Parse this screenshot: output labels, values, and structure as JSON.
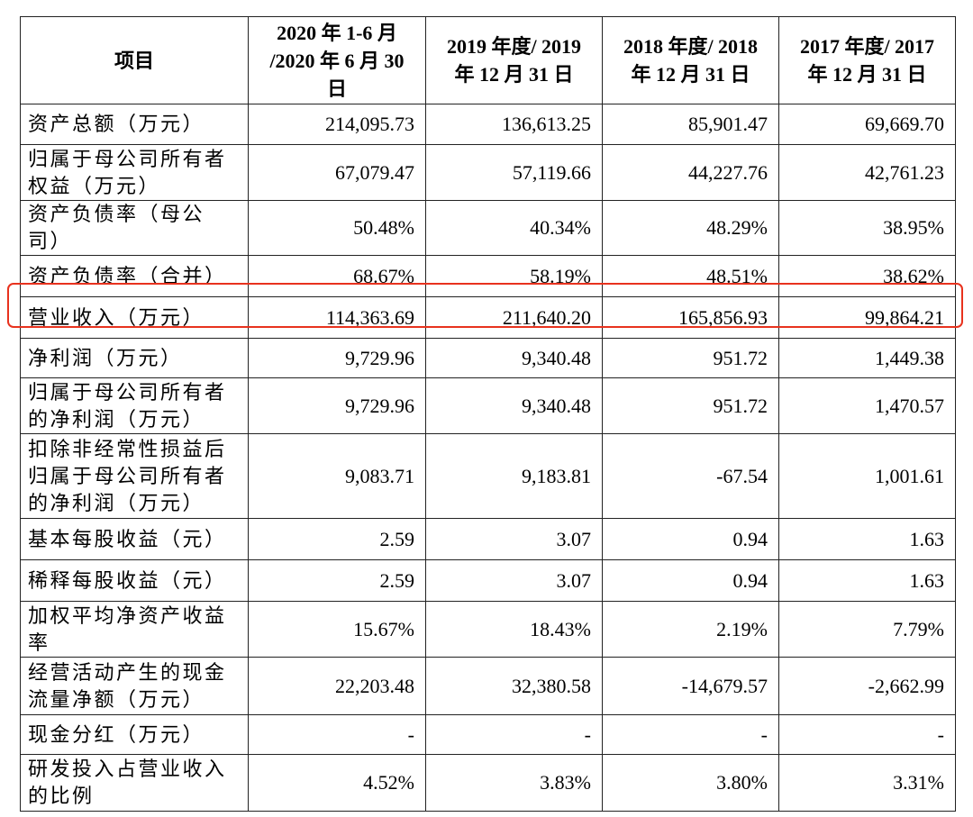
{
  "table": {
    "header": [
      "项目",
      "2020 年 1-6 月 /2020 年 6 月 30 日",
      "2019 年度/ 2019 年 12 月 31 日",
      "2018 年度/ 2018 年 12 月 31 日",
      "2017 年度/ 2017 年 12 月 31 日"
    ],
    "rows": [
      [
        "资产总额（万元）",
        "214,095.73",
        "136,613.25",
        "85,901.47",
        "69,669.70"
      ],
      [
        "归属于母公司所有者权益（万元）",
        "67,079.47",
        "57,119.66",
        "44,227.76",
        "42,761.23"
      ],
      [
        "资产负债率（母公司）",
        "50.48%",
        "40.34%",
        "48.29%",
        "38.95%"
      ],
      [
        "资产负债率（合并）",
        "68.67%",
        "58.19%",
        "48.51%",
        "38.62%"
      ],
      [
        "营业收入（万元）",
        "114,363.69",
        "211,640.20",
        "165,856.93",
        "99,864.21"
      ],
      [
        "净利润（万元）",
        "9,729.96",
        "9,340.48",
        "951.72",
        "1,449.38"
      ],
      [
        "归属于母公司所有者的净利润（万元）",
        "9,729.96",
        "9,340.48",
        "951.72",
        "1,470.57"
      ],
      [
        "扣除非经常性损益后归属于母公司所有者的净利润（万元）",
        "9,083.71",
        "9,183.81",
        "-67.54",
        "1,001.61"
      ],
      [
        "基本每股收益（元）",
        "2.59",
        "3.07",
        "0.94",
        "1.63"
      ],
      [
        "稀释每股收益（元）",
        "2.59",
        "3.07",
        "0.94",
        "1.63"
      ],
      [
        "加权平均净资产收益率",
        "15.67%",
        "18.43%",
        "2.19%",
        "7.79%"
      ],
      [
        "经营活动产生的现金流量净额（万元）",
        "22,203.48",
        "32,380.58",
        "-14,679.57",
        "-2,662.99"
      ],
      [
        "现金分红（万元）",
        "-",
        "-",
        "-",
        "-"
      ],
      [
        "研发投入占营业收入的比例",
        "4.52%",
        "3.83%",
        "3.80%",
        "3.31%"
      ]
    ]
  }
}
